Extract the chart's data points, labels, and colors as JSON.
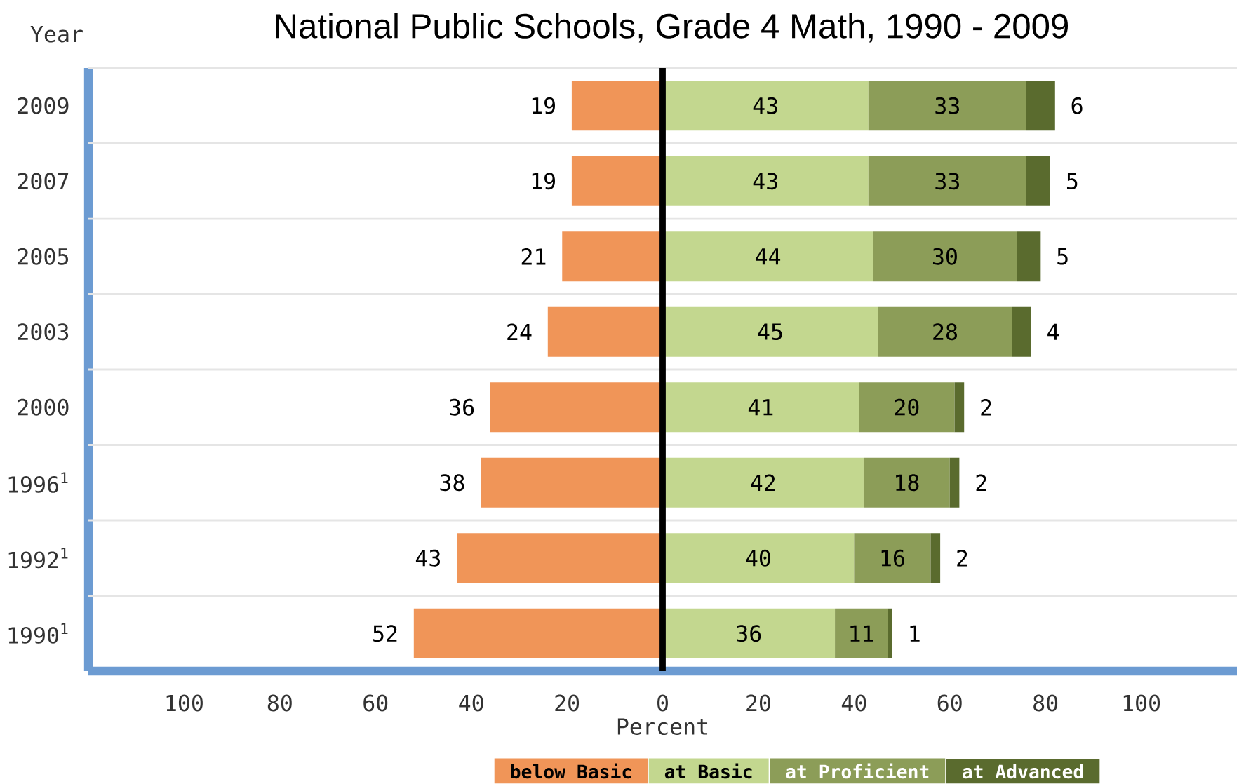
{
  "chart_data": {
    "type": "bar",
    "orientation": "horizontal",
    "stacked": true,
    "title": "National Public Schools, Grade 4 Math, 1990 - 2009",
    "xlabel": "Percent",
    "ylabel": "Year",
    "categories": [
      "2009",
      "2007",
      "2005",
      "2003",
      "2000",
      "1996$^{1}$",
      "1992$^{1}$",
      "1990$^{1}$"
    ],
    "series": [
      {
        "name": "below Basic",
        "color": "#f09558",
        "values": [
          19,
          19,
          21,
          24,
          36,
          38,
          43,
          52
        ],
        "base": [
          -19,
          -19,
          -21,
          -24,
          -36,
          -38,
          -43,
          -52
        ],
        "value_labels": [
          "19",
          "19",
          "21",
          "24",
          "36",
          "38",
          "43",
          "52"
        ]
      },
      {
        "name": "at Basic",
        "color": "#c3d78f",
        "values": [
          43,
          43,
          44,
          45,
          41,
          42,
          40,
          36
        ],
        "value_labels": [
          "43",
          "43",
          "44",
          "45",
          "41",
          "42",
          "40",
          "36"
        ]
      },
      {
        "name": "at Proficient",
        "color": "#8c9d58",
        "values": [
          33,
          33,
          30,
          28,
          20,
          18,
          16,
          11
        ],
        "value_labels": [
          "33",
          "33",
          "30",
          "28",
          "20",
          "18",
          "16",
          "11"
        ]
      },
      {
        "name": "at Advanced",
        "color": "#5a6b2e",
        "values": [
          6,
          5,
          5,
          4,
          2,
          2,
          2,
          1
        ],
        "value_labels": [
          "6",
          "5",
          "5",
          "4",
          "2",
          "2",
          "2",
          "1"
        ]
      }
    ],
    "xlim": [
      -120,
      120
    ],
    "xticks": [
      {
        "value": -100,
        "label": "100"
      },
      {
        "value": -80,
        "label": "80"
      },
      {
        "value": -60,
        "label": "60"
      },
      {
        "value": -40,
        "label": "40"
      },
      {
        "value": -20,
        "label": "20"
      },
      0,
      20,
      40,
      60,
      80,
      100
    ],
    "ref_lines": [
      {
        "axis": "x",
        "value": 0,
        "color": "#000000"
      }
    ],
    "grid": "y",
    "legend": "bottom"
  }
}
